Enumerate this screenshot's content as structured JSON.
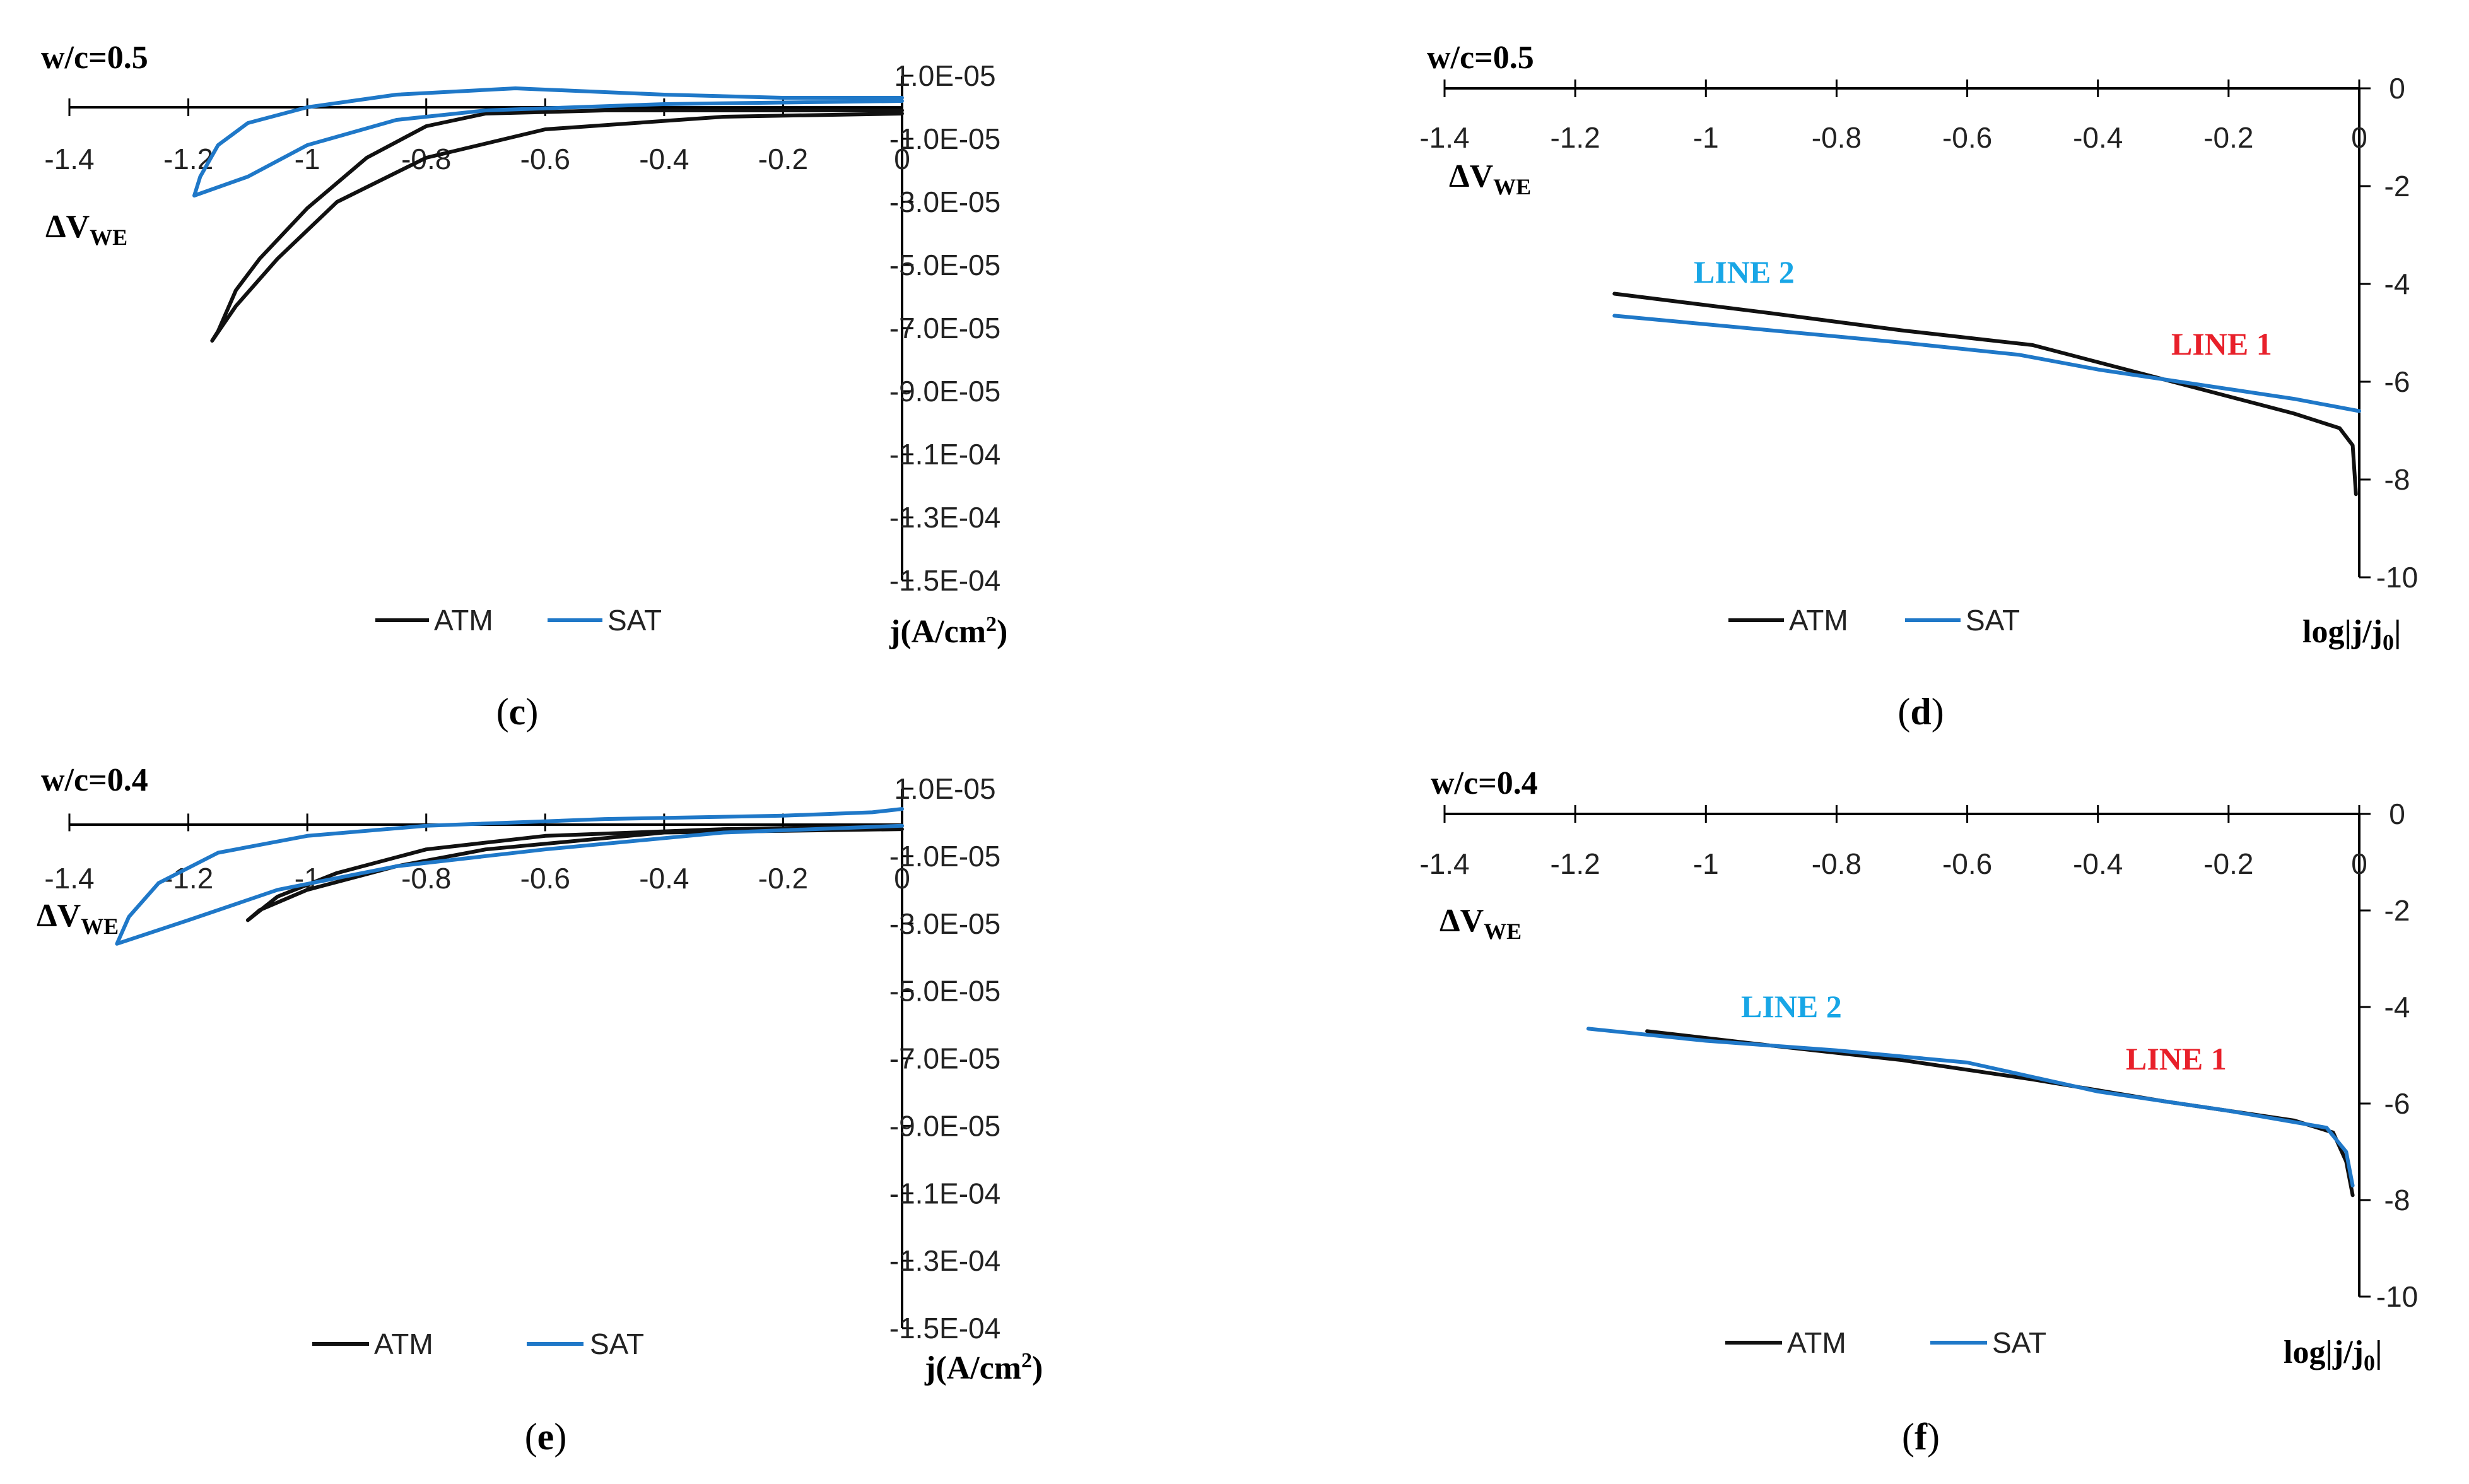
{
  "figure": {
    "colors": {
      "atm": "#111111",
      "sat": "#1f78c8",
      "line1_label": "#e8202a",
      "line2_label": "#18a6e6"
    },
    "legend": {
      "atm": "ATM",
      "sat": "SAT"
    },
    "panel_labels": {
      "c": "c",
      "d": "d",
      "e": "e",
      "f": "f"
    }
  },
  "chart_data": [
    {
      "id": "c",
      "type": "line",
      "title": "w/c=0.5",
      "xlabel": "ΔV",
      "xlabel_sub": "WE",
      "ylabel": "j(A/cm",
      "ylabel_sup": "2",
      "ylabel_end": ")",
      "xlim": [
        -1.4,
        0
      ],
      "ylim": [
        -0.00015,
        1e-05
      ],
      "x_ticks": [
        "-1.4",
        "-1.2",
        "-1",
        "-0.8",
        "-0.6",
        "-0.4",
        "-0.2",
        "0"
      ],
      "y_ticks": [
        "1.0E-05",
        "-1.0E-05",
        "-3.0E-05",
        "-5.0E-05",
        "-7.0E-05",
        "-9.0E-05",
        "-1.1E-04",
        "-1.3E-04",
        "-1.5E-04"
      ],
      "series": [
        {
          "name": "ATM",
          "x": [
            0,
            -0.3,
            -0.6,
            -0.8,
            -0.95,
            -1.05,
            -1.12,
            -1.16,
            -1.15,
            -1.12,
            -1.08,
            -1.0,
            -0.9,
            -0.8,
            -0.7,
            -0.5,
            -0.2,
            0
          ],
          "y": [
            -2e-06,
            -3e-06,
            -7e-06,
            -1.6e-05,
            -3e-05,
            -4.8e-05,
            -6.3e-05,
            -7.4e-05,
            -7.1e-05,
            -5.8e-05,
            -4.8e-05,
            -3.2e-05,
            -1.6e-05,
            -6e-06,
            -2e-06,
            -1e-06,
            -1e-06,
            -1e-06
          ]
        },
        {
          "name": "SAT",
          "x": [
            0,
            -0.4,
            -0.7,
            -0.85,
            -1.0,
            -1.1,
            -1.19,
            -1.18,
            -1.15,
            -1.1,
            -1.0,
            -0.85,
            -0.65,
            -0.4,
            -0.2,
            0
          ],
          "y": [
            2e-06,
            1e-06,
            -1e-06,
            -4e-06,
            -1.2e-05,
            -2.2e-05,
            -2.8e-05,
            -2.2e-05,
            -1.2e-05,
            -5e-06,
            0.0,
            4e-06,
            6e-06,
            4e-06,
            3e-06,
            3e-06
          ]
        }
      ]
    },
    {
      "id": "d",
      "type": "line",
      "title": "w/c=0.5",
      "xlabel": "ΔV",
      "xlabel_sub": "WE",
      "ylabel": "log|j/j",
      "ylabel_sub": "0",
      "ylabel_end": "|",
      "xlim": [
        -1.4,
        0
      ],
      "ylim": [
        -10,
        0
      ],
      "x_ticks": [
        "-1.4",
        "-1.2",
        "-1",
        "-0.8",
        "-0.6",
        "-0.4",
        "-0.2",
        "0"
      ],
      "y_ticks": [
        "0",
        "-2",
        "-4",
        "-6",
        "-8",
        "-10"
      ],
      "annotations": {
        "line1": "LINE 1",
        "line2": "LINE 2"
      },
      "series": [
        {
          "name": "ATM",
          "x": [
            -1.14,
            -0.9,
            -0.7,
            -0.5,
            -0.3,
            -0.1,
            -0.03,
            -0.01,
            -0.005
          ],
          "y": [
            -4.2,
            -4.6,
            -4.95,
            -5.25,
            -5.95,
            -6.65,
            -6.95,
            -7.3,
            -8.3
          ]
        },
        {
          "name": "SAT",
          "x": [
            -1.14,
            -0.9,
            -0.7,
            -0.52,
            -0.4,
            -0.3,
            -0.1,
            0
          ],
          "y": [
            -4.65,
            -4.95,
            -5.2,
            -5.45,
            -5.75,
            -5.95,
            -6.35,
            -6.6
          ]
        }
      ]
    },
    {
      "id": "e",
      "type": "line",
      "title": "w/c=0.4",
      "xlabel": "ΔV",
      "xlabel_sub": "WE",
      "ylabel": "j(A/cm",
      "ylabel_sup": "2",
      "ylabel_end": ")",
      "xlim": [
        -1.4,
        0
      ],
      "ylim": [
        -0.00015,
        1e-05
      ],
      "x_ticks": [
        "-1.4",
        "-1.2",
        "-1",
        "-0.8",
        "-0.6",
        "-0.4",
        "-0.2",
        "0"
      ],
      "y_ticks": [
        "1.0E-05",
        "-1.0E-05",
        "-3.0E-05",
        "-5.0E-05",
        "-7.0E-05",
        "-9.0E-05",
        "-1.1E-04",
        "-1.3E-04",
        "-1.5E-04"
      ],
      "series": [
        {
          "name": "ATM",
          "x": [
            0,
            -0.4,
            -0.7,
            -0.85,
            -1.0,
            -1.08,
            -1.1,
            -1.05,
            -0.95,
            -0.8,
            -0.6,
            -0.3,
            0
          ],
          "y": [
            -2e-06,
            -3e-06,
            -8e-06,
            -1.3e-05,
            -2e-05,
            -2.6e-05,
            -2.9e-05,
            -2.2e-05,
            -1.5e-05,
            -8e-06,
            -4e-06,
            -2e-06,
            -1e-06
          ]
        },
        {
          "name": "SAT",
          "x": [
            0,
            -0.3,
            -0.6,
            -0.85,
            -1.05,
            -1.2,
            -1.32,
            -1.3,
            -1.25,
            -1.15,
            -1.0,
            -0.8,
            -0.5,
            -0.2,
            -0.05,
            0
          ],
          "y": [
            -1e-06,
            -3e-06,
            -8e-06,
            -1.3e-05,
            -2e-05,
            -2.9e-05,
            -3.6e-05,
            -2.8e-05,
            -1.8e-05,
            -9e-06,
            -4e-06,
            -1e-06,
            1e-06,
            2e-06,
            3e-06,
            4e-06
          ]
        }
      ]
    },
    {
      "id": "f",
      "type": "line",
      "title": "w/c=0.4",
      "xlabel": "ΔV",
      "xlabel_sub": "WE",
      "ylabel": "log|j/j",
      "ylabel_sub": "0",
      "ylabel_end": "|",
      "xlim": [
        -1.4,
        0
      ],
      "ylim": [
        -10,
        0
      ],
      "x_ticks": [
        "-1.4",
        "-1.2",
        "-1",
        "-0.8",
        "-0.6",
        "-0.4",
        "-0.2",
        "0"
      ],
      "y_ticks": [
        "0",
        "-2",
        "-4",
        "-6",
        "-8",
        "-10"
      ],
      "annotations": {
        "line1": "LINE 1",
        "line2": "LINE 2"
      },
      "series": [
        {
          "name": "ATM",
          "x": [
            -1.09,
            -0.9,
            -0.7,
            -0.5,
            -0.3,
            -0.1,
            -0.04,
            -0.02,
            -0.01
          ],
          "y": [
            -4.5,
            -4.8,
            -5.1,
            -5.5,
            -5.95,
            -6.35,
            -6.6,
            -7.2,
            -7.9
          ]
        },
        {
          "name": "SAT",
          "x": [
            -1.18,
            -1.0,
            -0.8,
            -0.6,
            -0.5,
            -0.4,
            -0.2,
            -0.05,
            -0.02,
            -0.01
          ],
          "y": [
            -4.45,
            -4.7,
            -4.9,
            -5.15,
            -5.45,
            -5.75,
            -6.15,
            -6.5,
            -7.0,
            -7.7
          ]
        }
      ]
    }
  ]
}
